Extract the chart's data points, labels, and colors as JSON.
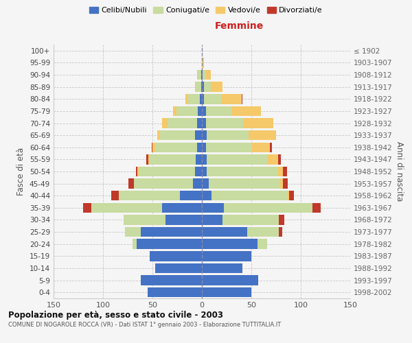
{
  "age_groups": [
    "0-4",
    "5-9",
    "10-14",
    "15-19",
    "20-24",
    "25-29",
    "30-34",
    "35-39",
    "40-44",
    "45-49",
    "50-54",
    "55-59",
    "60-64",
    "65-69",
    "70-74",
    "75-79",
    "80-84",
    "85-89",
    "90-94",
    "95-99",
    "100+"
  ],
  "birth_years": [
    "1998-2002",
    "1993-1997",
    "1988-1992",
    "1983-1987",
    "1978-1982",
    "1973-1977",
    "1968-1972",
    "1963-1967",
    "1958-1962",
    "1953-1957",
    "1948-1952",
    "1943-1947",
    "1938-1942",
    "1933-1937",
    "1928-1932",
    "1923-1927",
    "1918-1922",
    "1913-1917",
    "1908-1912",
    "1903-1907",
    "≤ 1902"
  ],
  "male": {
    "celibe": [
      55,
      62,
      47,
      53,
      66,
      62,
      37,
      40,
      22,
      9,
      7,
      6,
      5,
      7,
      5,
      4,
      2,
      1,
      1,
      0,
      0
    ],
    "coniugato": [
      0,
      0,
      0,
      0,
      4,
      16,
      42,
      72,
      62,
      60,
      57,
      47,
      42,
      36,
      30,
      22,
      12,
      5,
      3,
      0,
      0
    ],
    "vedovo": [
      0,
      0,
      0,
      0,
      0,
      0,
      0,
      0,
      0,
      0,
      1,
      1,
      3,
      2,
      5,
      3,
      3,
      1,
      1,
      0,
      0
    ],
    "divorziato": [
      0,
      0,
      0,
      0,
      0,
      0,
      0,
      8,
      8,
      5,
      2,
      2,
      1,
      0,
      0,
      0,
      0,
      0,
      0,
      0,
      0
    ]
  },
  "female": {
    "nubile": [
      50,
      57,
      41,
      50,
      56,
      46,
      21,
      22,
      10,
      7,
      5,
      5,
      4,
      5,
      4,
      4,
      2,
      2,
      1,
      0,
      0
    ],
    "coniugata": [
      0,
      0,
      0,
      0,
      10,
      32,
      57,
      90,
      77,
      72,
      72,
      62,
      47,
      42,
      38,
      26,
      18,
      7,
      3,
      0,
      0
    ],
    "vedova": [
      0,
      0,
      0,
      0,
      0,
      0,
      0,
      0,
      1,
      3,
      5,
      10,
      18,
      28,
      30,
      30,
      20,
      12,
      5,
      2,
      0
    ],
    "divorziata": [
      0,
      0,
      0,
      0,
      0,
      3,
      5,
      8,
      5,
      5,
      4,
      3,
      2,
      0,
      0,
      0,
      1,
      0,
      0,
      0,
      0
    ]
  },
  "colors": {
    "celibe": "#4472C4",
    "coniugato": "#c8dba0",
    "vedovo": "#f5c96a",
    "divorziato": "#c0392b"
  },
  "xlim": 150,
  "title": "Popolazione per età, sesso e stato civile - 2003",
  "subtitle": "COMUNE DI NOGAROLE ROCCA (VR) - Dati ISTAT 1° gennaio 2003 - Elaborazione TUTTITALIA.IT",
  "xlabel_right": "Femmine",
  "ylabel_left": "Fasce di età",
  "ylabel_right": "Anni di nascita",
  "legend_labels": [
    "Celibi/Nubili",
    "Coniugati/e",
    "Vedovi/e",
    "Divorziati/e"
  ],
  "background_color": "#f5f5f5",
  "bar_height": 0.82
}
